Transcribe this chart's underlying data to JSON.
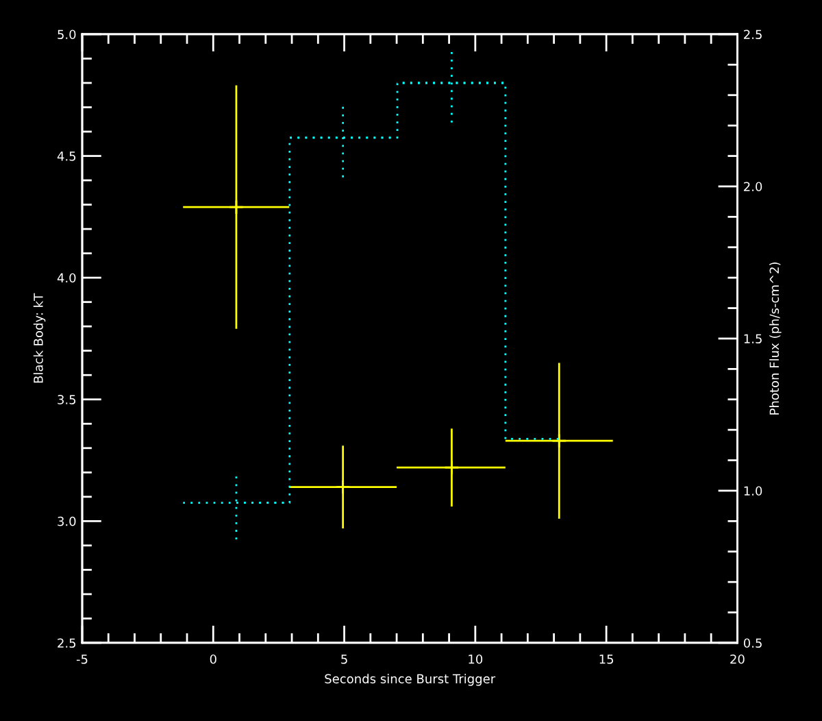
{
  "chart_data": {
    "type": "scatter",
    "xlabel": "Seconds since Burst Trigger",
    "ylabel": "Black Body: kT",
    "y2label": "Photon Flux (ph/s-cm^2)",
    "x": [
      0.88,
      4.95,
      9.1,
      13.2
    ],
    "xlim": [
      -5,
      20
    ],
    "ylim": [
      2.5,
      5.0
    ],
    "y2lim": [
      0.5,
      2.5
    ],
    "xticks": [
      -5,
      {
        "value": -4,
        "label": null
      },
      {
        "value": -3,
        "label": null
      },
      {
        "value": -2,
        "label": null
      },
      {
        "value": -1,
        "label": null
      },
      0,
      {
        "value": 1,
        "label": null
      },
      {
        "value": 2,
        "label": null
      },
      {
        "value": 3,
        "label": null
      },
      {
        "value": 4,
        "label": null
      },
      5,
      {
        "value": 6,
        "label": null
      },
      {
        "value": 7,
        "label": null
      },
      {
        "value": 8,
        "label": null
      },
      {
        "value": 9,
        "label": null
      },
      10,
      {
        "value": 11,
        "label": null
      },
      {
        "value": 12,
        "label": null
      },
      {
        "value": 13,
        "label": null
      },
      {
        "value": 14,
        "label": null
      },
      15,
      {
        "value": 16,
        "label": null
      },
      {
        "value": 17,
        "label": null
      },
      {
        "value": 18,
        "label": null
      },
      {
        "value": 19,
        "label": null
      },
      20
    ],
    "yticks": [
      2.5,
      {
        "value": 2.6,
        "label": null
      },
      {
        "value": 2.7,
        "label": null
      },
      {
        "value": 2.8,
        "label": null
      },
      {
        "value": 2.9,
        "label": null
      },
      {
        "value": 3,
        "label": "3.0"
      },
      {
        "value": 3.1,
        "label": null
      },
      {
        "value": 3.2,
        "label": null
      },
      {
        "value": 3.3,
        "label": null
      },
      {
        "value": 3.4,
        "label": null
      },
      3.5,
      {
        "value": 3.6,
        "label": null
      },
      {
        "value": 3.7,
        "label": null
      },
      {
        "value": 3.8,
        "label": null
      },
      {
        "value": 3.9,
        "label": null
      },
      {
        "value": 4,
        "label": "4.0"
      },
      {
        "value": 4.1,
        "label": null
      },
      {
        "value": 4.2,
        "label": null
      },
      {
        "value": 4.3,
        "label": null
      },
      {
        "value": 4.4,
        "label": null
      },
      4.5,
      {
        "value": 4.6,
        "label": null
      },
      {
        "value": 4.7,
        "label": null
      },
      {
        "value": 4.8,
        "label": null
      },
      {
        "value": 4.9,
        "label": null
      },
      {
        "value": 5,
        "label": "5.0"
      }
    ],
    "y2ticks": [
      0.5,
      {
        "value": 0.6,
        "label": null
      },
      {
        "value": 0.7,
        "label": null
      },
      {
        "value": 0.8,
        "label": null
      },
      {
        "value": 0.9,
        "label": null
      },
      {
        "value": 1,
        "label": "1.0"
      },
      {
        "value": 1.1,
        "label": null
      },
      {
        "value": 1.2,
        "label": null
      },
      {
        "value": 1.3,
        "label": null
      },
      {
        "value": 1.4,
        "label": null
      },
      1.5,
      {
        "value": 1.6,
        "label": null
      },
      {
        "value": 1.7,
        "label": null
      },
      {
        "value": 1.8,
        "label": null
      },
      {
        "value": 1.9,
        "label": null
      },
      {
        "value": 2,
        "label": "2.0"
      },
      {
        "value": 2.1,
        "label": null
      },
      {
        "value": 2.2,
        "label": null
      },
      {
        "value": 2.3,
        "label": null
      },
      {
        "value": 2.4,
        "label": null
      },
      2.5
    ],
    "series": [
      {
        "marker": "cross",
        "color": "#ffff00",
        "values": [
          4.29,
          3.14,
          3.22,
          3.33
        ],
        "errors": [
          0.5,
          0.17,
          0.16,
          0.32
        ],
        "xerrors": [
          [
            -1.15,
            2.9
          ],
          [
            2.9,
            7.0
          ],
          [
            7.0,
            11.15
          ],
          [
            11.15,
            15.25
          ]
        ]
      },
      {
        "type": "step",
        "axis": "y2",
        "line_style": "dotted",
        "color": "#00ffff",
        "values": [
          0.96,
          2.16,
          2.34,
          1.17
        ],
        "errors": [
          [
            0.84,
            1.06
          ],
          [
            2.03,
            2.27
          ],
          [
            2.21,
            2.45
          ],
          null
        ],
        "xerrors": [
          [
            -1.15,
            2.9
          ],
          [
            2.9,
            7.0
          ],
          [
            7.0,
            11.15
          ],
          null
        ]
      }
    ]
  }
}
